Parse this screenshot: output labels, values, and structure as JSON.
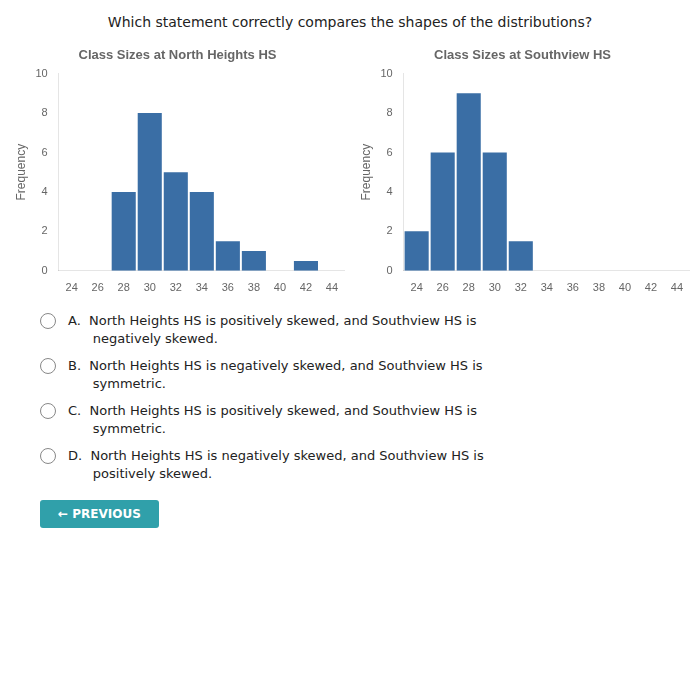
{
  "annotations": [
    "Which statement correctly compares the shapes of the distributions?",
    "A.  North Heights HS is positively skewed, and Southview HS is\n      negatively skewed.",
    "B.  North Heights HS is negatively skewed, and Southview HS is\n      symmetric.",
    "C.  North Heights HS is positively skewed, and Southview HS is\n      symmetric.",
    "D.  North Heights HS is negatively skewed, and Southview HS is\n      positively skewed.",
    "← PREVIOUS"
  ],
  "chart_data": [
    {
      "type": "bar",
      "title": "Class Sizes at North Heights HS",
      "x": [
        24,
        26,
        28,
        30,
        32,
        34,
        36,
        38,
        40,
        42,
        44
      ],
      "values": [
        0,
        0,
        4,
        8,
        5,
        4,
        1.5,
        1,
        0,
        0.5,
        0
      ],
      "color": "#3a6ea5",
      "ylabel": "Frequency",
      "xlim": [
        23,
        45
      ],
      "xticks": [
        24,
        26,
        28,
        30,
        32,
        34,
        36,
        38,
        40,
        42,
        44
      ],
      "ylim": [
        0,
        10
      ],
      "yticks": [
        0,
        2,
        4,
        6,
        8,
        10
      ],
      "grid": false
    },
    {
      "type": "bar",
      "title": "Class Sizes at Southview HS",
      "x": [
        24,
        26,
        28,
        30,
        32,
        34,
        36,
        38,
        40,
        42,
        44
      ],
      "values": [
        2,
        6,
        9,
        6,
        1.5,
        0,
        0,
        0,
        0,
        0,
        0
      ],
      "color": "#3a6ea5",
      "ylabel": "Frequency",
      "xlim": [
        23,
        45
      ],
      "xticks": [
        24,
        26,
        28,
        30,
        32,
        34,
        36,
        38,
        40,
        42,
        44
      ],
      "ylim": [
        0,
        10
      ],
      "yticks": [
        0,
        2,
        4,
        6,
        8,
        10
      ],
      "grid": false
    }
  ]
}
